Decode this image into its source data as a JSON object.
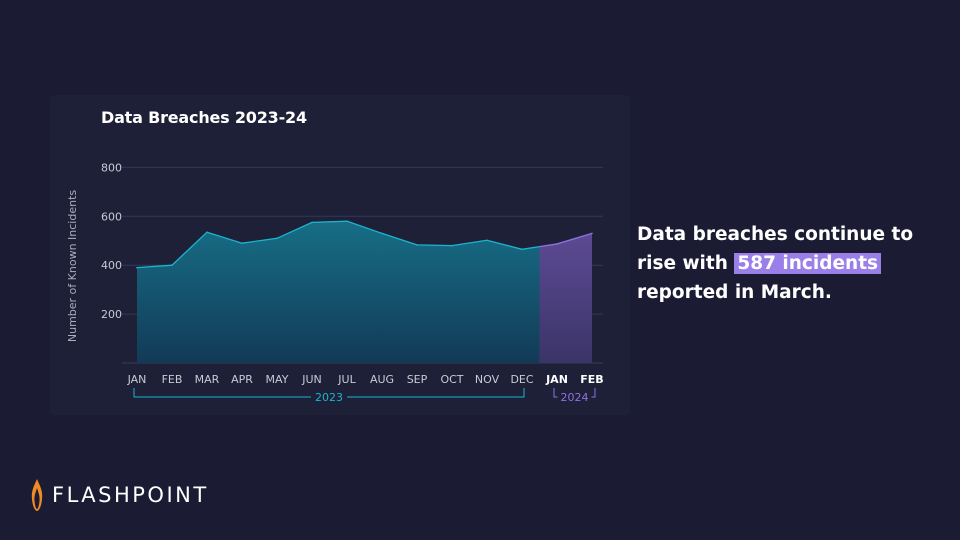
{
  "chart_data": {
    "type": "area",
    "title": "Data Breaches 2023-24",
    "ylabel": "Number of Known Incidents",
    "ylim": [
      0,
      800
    ],
    "yticks": [
      200,
      400,
      600,
      800
    ],
    "categories": [
      "JAN",
      "FEB",
      "MAR",
      "APR",
      "MAY",
      "JUN",
      "JUL",
      "AUG",
      "SEP",
      "OCT",
      "NOV",
      "DEC",
      "JAN",
      "FEB"
    ],
    "values": [
      390,
      400,
      535,
      490,
      510,
      575,
      580,
      530,
      483,
      480,
      502,
      465,
      487,
      530
    ],
    "series": [
      {
        "year_label": "2023",
        "color": "#1bb5cf",
        "start": 0,
        "end": 11
      },
      {
        "year_label": "2024",
        "color": "#8f72e0",
        "start": 11,
        "end": 13
      }
    ],
    "grid": true
  },
  "headline": {
    "line1": "Data breaches continue to",
    "line2_prefix": "rise with ",
    "highlight": "587 incidents",
    "line3": "reported in March."
  },
  "brand": {
    "name": "FLASHPOINT",
    "icon": "flame-icon"
  }
}
